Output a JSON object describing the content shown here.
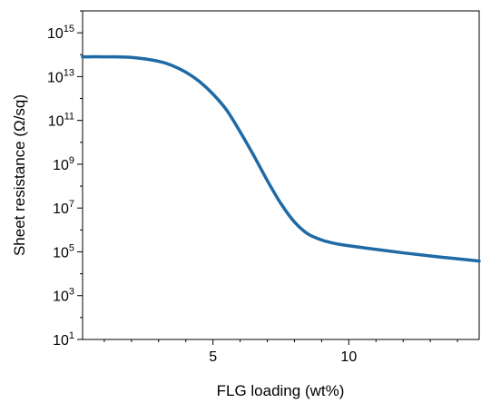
{
  "chart_data": {
    "type": "line",
    "title": "",
    "xlabel": "FLG loading (wt%)",
    "ylabel": "Sheet resistance (Ω/sq)",
    "xlim": [
      0.2,
      14.8
    ],
    "ylim_log10": [
      1,
      16
    ],
    "yscale": "log",
    "grid": false,
    "legend": "none",
    "x_ticks": [
      5,
      10
    ],
    "y_ticks": [
      {
        "exp": 1,
        "base": "10",
        "sup": "1"
      },
      {
        "exp": 3,
        "base": "10",
        "sup": "3"
      },
      {
        "exp": 5,
        "base": "10",
        "sup": "5"
      },
      {
        "exp": 7,
        "base": "10",
        "sup": "7"
      },
      {
        "exp": 9,
        "base": "10",
        "sup": "9"
      },
      {
        "exp": 11,
        "base": "10",
        "sup": "11"
      },
      {
        "exp": 13,
        "base": "10",
        "sup": "13"
      },
      {
        "exp": 15,
        "base": "10",
        "sup": "15"
      }
    ],
    "series": [
      {
        "color": "#1f6aa5",
        "x": [
          0.2,
          1.0,
          2.0,
          3.0,
          3.5,
          4.0,
          4.5,
          5.0,
          5.5,
          6.0,
          6.5,
          7.0,
          7.5,
          8.0,
          8.5,
          9.0,
          9.5,
          10.0,
          11.0,
          12.0,
          13.0,
          14.0,
          14.8
        ],
        "y": [
          80000000000000.0,
          80000000000000.0,
          75000000000000.0,
          50000000000000.0,
          32000000000000.0,
          16000000000000.0,
          6000000000000.0,
          1600000000000.0,
          300000000000.0,
          30000000000.0,
          2500000000.0,
          180000000.0,
          16000000.0,
          2300000.0,
          650000.0,
          350000.0,
          240000.0,
          190000.0,
          130000.0,
          90000.0,
          65000.0,
          48000.0,
          38000.0
        ]
      }
    ]
  }
}
